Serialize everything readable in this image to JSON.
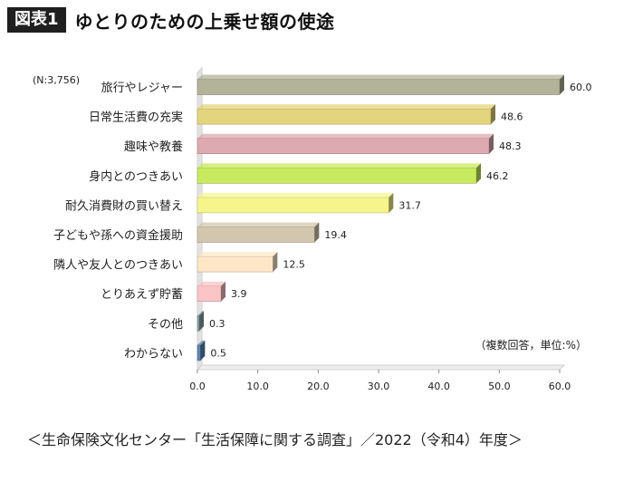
{
  "header": {
    "badge": "図表1",
    "title": "ゆとりのための上乗せ額の使途"
  },
  "chart_data": {
    "type": "bar",
    "orientation": "horizontal",
    "title": "ゆとりのための上乗せ額の使途",
    "sample_note": "(N:3,756)",
    "unit_note": "（複数回答，単位:%）",
    "categories": [
      "旅行やレジャー",
      "日常生活費の充実",
      "趣味や教養",
      "身内とのつきあい",
      "耐久消費財の買い替え",
      "子どもや孫への資金援助",
      "隣人や友人とのつきあい",
      "とりあえず貯蓄",
      "その他",
      "わからない"
    ],
    "values": [
      60.0,
      48.6,
      48.3,
      46.2,
      31.7,
      19.4,
      12.5,
      3.9,
      0.3,
      0.5
    ],
    "value_labels": [
      "60.0",
      "48.6",
      "48.3",
      "46.2",
      "31.7",
      "19.4",
      "12.5",
      "3.9",
      "0.3",
      "0.5"
    ],
    "colors": [
      "#b3b39a",
      "#e2d57e",
      "#dcaab0",
      "#c8ea5e",
      "#f6f58c",
      "#d3c6ae",
      "#fde7c7",
      "#fbc4c6",
      "#8fa5a7",
      "#5f86b4"
    ],
    "x_ticks": [
      "0.0",
      "10.0",
      "20.0",
      "30.0",
      "40.0",
      "50.0",
      "60.0"
    ],
    "xlim": [
      0,
      60
    ],
    "xlabel": "",
    "ylabel": "",
    "grid": false
  },
  "source": "＜生命保険文化センター「生活保障に関する調査」／2022（令和4）年度＞"
}
